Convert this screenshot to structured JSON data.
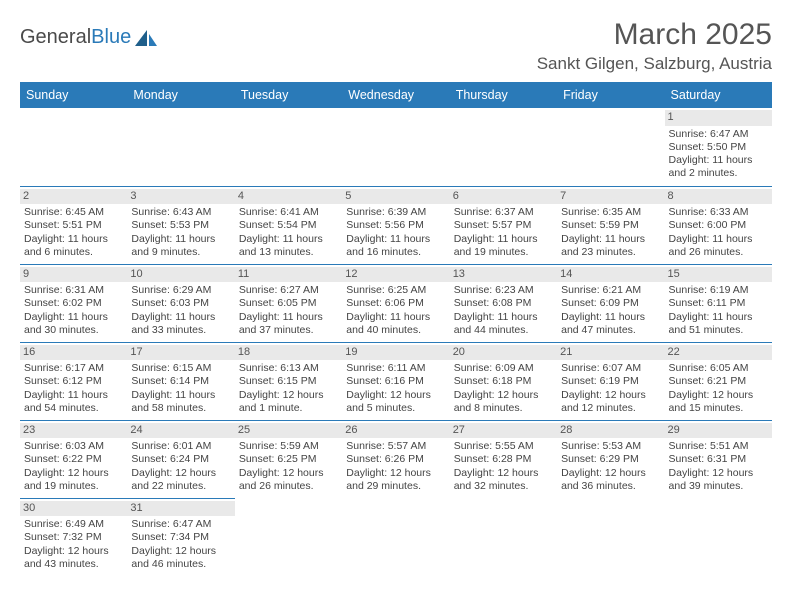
{
  "logo": {
    "text1": "General",
    "text2": "Blue"
  },
  "title": "March 2025",
  "location": "Sankt Gilgen, Salzburg, Austria",
  "colors": {
    "header_bg": "#2a7ab8",
    "header_fg": "#ffffff",
    "daynum_bg": "#e9e9e9",
    "text": "#444444",
    "rule": "#2a7ab8"
  },
  "weekdays": [
    "Sunday",
    "Monday",
    "Tuesday",
    "Wednesday",
    "Thursday",
    "Friday",
    "Saturday"
  ],
  "weeks": [
    [
      null,
      null,
      null,
      null,
      null,
      null,
      {
        "n": "1",
        "sr": "Sunrise: 6:47 AM",
        "ss": "Sunset: 5:50 PM",
        "dl": "Daylight: 11 hours and 2 minutes."
      }
    ],
    [
      {
        "n": "2",
        "sr": "Sunrise: 6:45 AM",
        "ss": "Sunset: 5:51 PM",
        "dl": "Daylight: 11 hours and 6 minutes."
      },
      {
        "n": "3",
        "sr": "Sunrise: 6:43 AM",
        "ss": "Sunset: 5:53 PM",
        "dl": "Daylight: 11 hours and 9 minutes."
      },
      {
        "n": "4",
        "sr": "Sunrise: 6:41 AM",
        "ss": "Sunset: 5:54 PM",
        "dl": "Daylight: 11 hours and 13 minutes."
      },
      {
        "n": "5",
        "sr": "Sunrise: 6:39 AM",
        "ss": "Sunset: 5:56 PM",
        "dl": "Daylight: 11 hours and 16 minutes."
      },
      {
        "n": "6",
        "sr": "Sunrise: 6:37 AM",
        "ss": "Sunset: 5:57 PM",
        "dl": "Daylight: 11 hours and 19 minutes."
      },
      {
        "n": "7",
        "sr": "Sunrise: 6:35 AM",
        "ss": "Sunset: 5:59 PM",
        "dl": "Daylight: 11 hours and 23 minutes."
      },
      {
        "n": "8",
        "sr": "Sunrise: 6:33 AM",
        "ss": "Sunset: 6:00 PM",
        "dl": "Daylight: 11 hours and 26 minutes."
      }
    ],
    [
      {
        "n": "9",
        "sr": "Sunrise: 6:31 AM",
        "ss": "Sunset: 6:02 PM",
        "dl": "Daylight: 11 hours and 30 minutes."
      },
      {
        "n": "10",
        "sr": "Sunrise: 6:29 AM",
        "ss": "Sunset: 6:03 PM",
        "dl": "Daylight: 11 hours and 33 minutes."
      },
      {
        "n": "11",
        "sr": "Sunrise: 6:27 AM",
        "ss": "Sunset: 6:05 PM",
        "dl": "Daylight: 11 hours and 37 minutes."
      },
      {
        "n": "12",
        "sr": "Sunrise: 6:25 AM",
        "ss": "Sunset: 6:06 PM",
        "dl": "Daylight: 11 hours and 40 minutes."
      },
      {
        "n": "13",
        "sr": "Sunrise: 6:23 AM",
        "ss": "Sunset: 6:08 PM",
        "dl": "Daylight: 11 hours and 44 minutes."
      },
      {
        "n": "14",
        "sr": "Sunrise: 6:21 AM",
        "ss": "Sunset: 6:09 PM",
        "dl": "Daylight: 11 hours and 47 minutes."
      },
      {
        "n": "15",
        "sr": "Sunrise: 6:19 AM",
        "ss": "Sunset: 6:11 PM",
        "dl": "Daylight: 11 hours and 51 minutes."
      }
    ],
    [
      {
        "n": "16",
        "sr": "Sunrise: 6:17 AM",
        "ss": "Sunset: 6:12 PM",
        "dl": "Daylight: 11 hours and 54 minutes."
      },
      {
        "n": "17",
        "sr": "Sunrise: 6:15 AM",
        "ss": "Sunset: 6:14 PM",
        "dl": "Daylight: 11 hours and 58 minutes."
      },
      {
        "n": "18",
        "sr": "Sunrise: 6:13 AM",
        "ss": "Sunset: 6:15 PM",
        "dl": "Daylight: 12 hours and 1 minute."
      },
      {
        "n": "19",
        "sr": "Sunrise: 6:11 AM",
        "ss": "Sunset: 6:16 PM",
        "dl": "Daylight: 12 hours and 5 minutes."
      },
      {
        "n": "20",
        "sr": "Sunrise: 6:09 AM",
        "ss": "Sunset: 6:18 PM",
        "dl": "Daylight: 12 hours and 8 minutes."
      },
      {
        "n": "21",
        "sr": "Sunrise: 6:07 AM",
        "ss": "Sunset: 6:19 PM",
        "dl": "Daylight: 12 hours and 12 minutes."
      },
      {
        "n": "22",
        "sr": "Sunrise: 6:05 AM",
        "ss": "Sunset: 6:21 PM",
        "dl": "Daylight: 12 hours and 15 minutes."
      }
    ],
    [
      {
        "n": "23",
        "sr": "Sunrise: 6:03 AM",
        "ss": "Sunset: 6:22 PM",
        "dl": "Daylight: 12 hours and 19 minutes."
      },
      {
        "n": "24",
        "sr": "Sunrise: 6:01 AM",
        "ss": "Sunset: 6:24 PM",
        "dl": "Daylight: 12 hours and 22 minutes."
      },
      {
        "n": "25",
        "sr": "Sunrise: 5:59 AM",
        "ss": "Sunset: 6:25 PM",
        "dl": "Daylight: 12 hours and 26 minutes."
      },
      {
        "n": "26",
        "sr": "Sunrise: 5:57 AM",
        "ss": "Sunset: 6:26 PM",
        "dl": "Daylight: 12 hours and 29 minutes."
      },
      {
        "n": "27",
        "sr": "Sunrise: 5:55 AM",
        "ss": "Sunset: 6:28 PM",
        "dl": "Daylight: 12 hours and 32 minutes."
      },
      {
        "n": "28",
        "sr": "Sunrise: 5:53 AM",
        "ss": "Sunset: 6:29 PM",
        "dl": "Daylight: 12 hours and 36 minutes."
      },
      {
        "n": "29",
        "sr": "Sunrise: 5:51 AM",
        "ss": "Sunset: 6:31 PM",
        "dl": "Daylight: 12 hours and 39 minutes."
      }
    ],
    [
      {
        "n": "30",
        "sr": "Sunrise: 6:49 AM",
        "ss": "Sunset: 7:32 PM",
        "dl": "Daylight: 12 hours and 43 minutes."
      },
      {
        "n": "31",
        "sr": "Sunrise: 6:47 AM",
        "ss": "Sunset: 7:34 PM",
        "dl": "Daylight: 12 hours and 46 minutes."
      },
      null,
      null,
      null,
      null,
      null
    ]
  ]
}
